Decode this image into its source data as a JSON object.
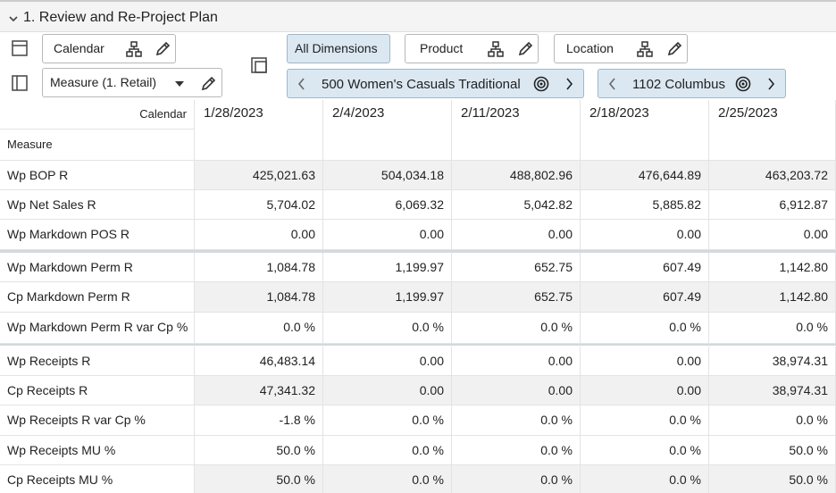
{
  "header": {
    "title": "1. Review and Re-Project Plan"
  },
  "toolbar": {
    "calendar": "Calendar",
    "measure": "Measure (1. Retail)",
    "all_dimensions": "All Dimensions",
    "product": "Product",
    "location": "Location",
    "product_member": "500 Women's Casuals Traditional",
    "location_member": "1102 Columbus"
  },
  "table": {
    "corner_column": "Calendar",
    "corner_row": "Measure",
    "columns": [
      "1/28/2023",
      "2/4/2023",
      "2/11/2023",
      "2/18/2023",
      "2/25/2023"
    ],
    "rows": [
      {
        "label": "Wp BOP R",
        "cells": [
          "425,021.63",
          "504,034.18",
          "488,802.96",
          "476,644.89",
          "463,203.72"
        ]
      },
      {
        "label": "Wp Net Sales R",
        "cells": [
          "5,704.02",
          "6,069.32",
          "5,042.82",
          "5,885.82",
          "6,912.87"
        ]
      },
      {
        "label": "Wp Markdown POS R",
        "cells": [
          "0.00",
          "0.00",
          "0.00",
          "0.00",
          "0.00"
        ]
      },
      {
        "label": "Wp Markdown Perm R",
        "cells": [
          "1,084.78",
          "1,199.97",
          "652.75",
          "607.49",
          "1,142.80"
        ]
      },
      {
        "label": "Cp Markdown Perm R",
        "cells": [
          "1,084.78",
          "1,199.97",
          "652.75",
          "607.49",
          "1,142.80"
        ]
      },
      {
        "label": "Wp Markdown Perm R var Cp %",
        "cells": [
          "0.0 %",
          "0.0 %",
          "0.0 %",
          "0.0 %",
          "0.0 %"
        ]
      },
      {
        "label": "Wp Receipts R",
        "cells": [
          "46,483.14",
          "0.00",
          "0.00",
          "0.00",
          "38,974.31"
        ]
      },
      {
        "label": "Cp Receipts R",
        "cells": [
          "47,341.32",
          "0.00",
          "0.00",
          "0.00",
          "38,974.31"
        ]
      },
      {
        "label": "Wp Receipts R var Cp %",
        "cells": [
          "-1.8 %",
          "0.0 %",
          "0.0 %",
          "0.0 %",
          "0.0 %"
        ]
      },
      {
        "label": "Wp Receipts MU %",
        "cells": [
          "50.0 %",
          "0.0 %",
          "0.0 %",
          "0.0 %",
          "50.0 %"
        ]
      },
      {
        "label": "Cp Receipts MU %",
        "cells": [
          "50.0 %",
          "0.0 %",
          "0.0 %",
          "0.0 %",
          "50.0 %"
        ]
      }
    ]
  }
}
